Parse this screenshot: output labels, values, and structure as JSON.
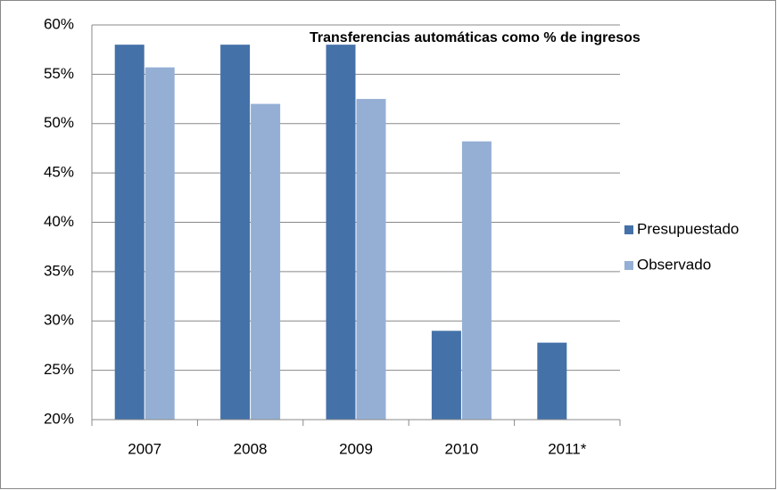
{
  "chart_data": {
    "type": "bar",
    "title": "Transferencias automáticas como % de ingresos",
    "categories": [
      "2007",
      "2008",
      "2009",
      "2010",
      "2011*"
    ],
    "series": [
      {
        "name": "Presupuestado",
        "color": "#4471a8",
        "values": [
          58,
          58,
          58,
          29,
          27.8
        ]
      },
      {
        "name": "Observado",
        "color": "#95afd4",
        "values": [
          55.7,
          52,
          52.5,
          48.2,
          null
        ]
      }
    ],
    "ylim": [
      20,
      60
    ],
    "yticks": [
      {
        "value": 20,
        "label": "20%"
      },
      {
        "value": 25,
        "label": "25%"
      },
      {
        "value": 30,
        "label": "30%"
      },
      {
        "value": 35,
        "label": "35%"
      },
      {
        "value": 40,
        "label": "40%"
      },
      {
        "value": 45,
        "label": "45%"
      },
      {
        "value": 50,
        "label": "50%"
      },
      {
        "value": 55,
        "label": "55%"
      },
      {
        "value": 60,
        "label": "60%"
      }
    ],
    "grid": true,
    "legend": "right"
  }
}
